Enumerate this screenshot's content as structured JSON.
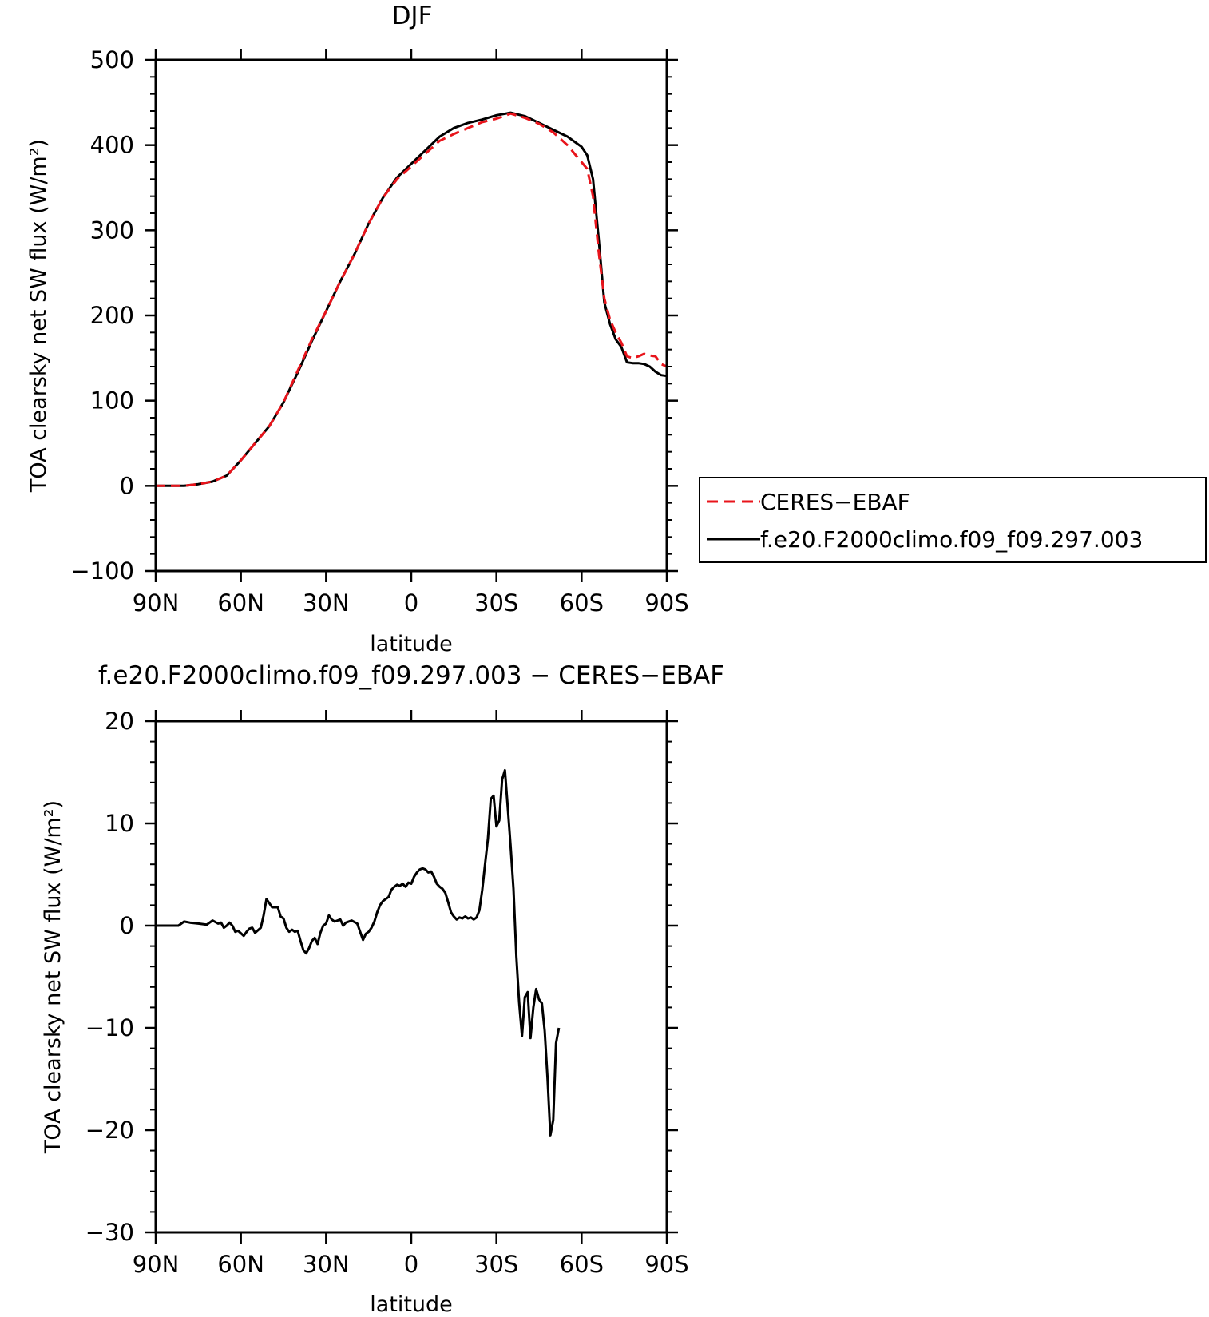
{
  "chart_data": [
    {
      "type": "line",
      "title": "DJF",
      "xlabel": "latitude",
      "ylabel": "TOA clearsky net SW flux (W/m²)",
      "xlim": [
        -90,
        90
      ],
      "ylim": [
        -100,
        500
      ],
      "x_ticks": [
        -90,
        -60,
        -30,
        0,
        30,
        60,
        90
      ],
      "x_tick_labels": [
        "90N",
        "60N",
        "30N",
        "0",
        "30S",
        "60S",
        "90S"
      ],
      "y_ticks": [
        -100,
        0,
        100,
        200,
        300,
        400,
        500
      ],
      "y_tick_labels": [
        "−100",
        "0",
        "100",
        "200",
        "300",
        "400",
        "500"
      ],
      "legend": {
        "placement": "right",
        "entries": [
          "CERES−EBAF",
          "f.e20.F2000climo.f09_f09.297.003"
        ]
      },
      "series": [
        {
          "name": "CERES−EBAF",
          "color": "#e8141b",
          "dash": "dashed",
          "points": [
            [
              -90,
              0
            ],
            [
              -85,
              0
            ],
            [
              -80,
              0
            ],
            [
              -75,
              2
            ],
            [
              -70,
              5
            ],
            [
              -65,
              12
            ],
            [
              -60,
              30
            ],
            [
              -55,
              50
            ],
            [
              -50,
              70
            ],
            [
              -45,
              98
            ],
            [
              -40,
              135
            ],
            [
              -35,
              172
            ],
            [
              -30,
              205
            ],
            [
              -25,
              240
            ],
            [
              -20,
              272
            ],
            [
              -15,
              308
            ],
            [
              -10,
              338
            ],
            [
              -5,
              360
            ],
            [
              0,
              375
            ],
            [
              5,
              390
            ],
            [
              10,
              405
            ],
            [
              15,
              413
            ],
            [
              20,
              420
            ],
            [
              25,
              427
            ],
            [
              30,
              431
            ],
            [
              35,
              437
            ],
            [
              40,
              432
            ],
            [
              45,
              425
            ],
            [
              50,
              415
            ],
            [
              55,
              400
            ],
            [
              60,
              380
            ],
            [
              62,
              372
            ],
            [
              64,
              340
            ],
            [
              66,
              275
            ],
            [
              68,
              220
            ],
            [
              70,
              195
            ],
            [
              72,
              180
            ],
            [
              74,
              168
            ],
            [
              76,
              152
            ],
            [
              78,
              150
            ],
            [
              80,
              152
            ],
            [
              82,
              155
            ],
            [
              84,
              153
            ],
            [
              86,
              152
            ],
            [
              88,
              143
            ],
            [
              90,
              140
            ]
          ]
        },
        {
          "name": "f.e20.F2000climo.f09_f09.297.003",
          "color": "#000000",
          "dash": "solid",
          "points": [
            [
              -90,
              0
            ],
            [
              -85,
              0
            ],
            [
              -80,
              0
            ],
            [
              -75,
              2
            ],
            [
              -70,
              5
            ],
            [
              -65,
              12
            ],
            [
              -60,
              30
            ],
            [
              -55,
              50
            ],
            [
              -50,
              70
            ],
            [
              -45,
              98
            ],
            [
              -40,
              133
            ],
            [
              -35,
              170
            ],
            [
              -30,
              205
            ],
            [
              -25,
              240
            ],
            [
              -20,
              272
            ],
            [
              -15,
              308
            ],
            [
              -10,
              338
            ],
            [
              -5,
              362
            ],
            [
              0,
              378
            ],
            [
              5,
              394
            ],
            [
              10,
              410
            ],
            [
              15,
              420
            ],
            [
              20,
              426
            ],
            [
              25,
              430
            ],
            [
              30,
              435
            ],
            [
              35,
              438
            ],
            [
              40,
              434
            ],
            [
              45,
              426
            ],
            [
              50,
              418
            ],
            [
              55,
              410
            ],
            [
              60,
              398
            ],
            [
              62,
              388
            ],
            [
              64,
              360
            ],
            [
              66,
              290
            ],
            [
              68,
              215
            ],
            [
              70,
              190
            ],
            [
              72,
              172
            ],
            [
              74,
              163
            ],
            [
              76,
              145
            ],
            [
              78,
              144
            ],
            [
              80,
              144
            ],
            [
              82,
              143
            ],
            [
              84,
              140
            ],
            [
              86,
              134
            ],
            [
              88,
              130
            ],
            [
              90,
              129
            ]
          ]
        }
      ]
    },
    {
      "type": "line",
      "title": "f.e20.F2000climo.f09_f09.297.003 − CERES−EBAF",
      "xlabel": "latitude",
      "ylabel": "TOA clearsky net SW flux (W/m²)",
      "xlim": [
        -90,
        90
      ],
      "ylim": [
        -30,
        20
      ],
      "x_ticks": [
        -90,
        -60,
        -30,
        0,
        30,
        60,
        90
      ],
      "x_tick_labels": [
        "90N",
        "60N",
        "30N",
        "0",
        "30S",
        "60S",
        "90S"
      ],
      "y_ticks": [
        -30,
        -20,
        -10,
        0,
        10,
        20
      ],
      "y_tick_labels": [
        "−30",
        "−20",
        "−10",
        "0",
        "10",
        "20"
      ],
      "series": [
        {
          "color": "#000000",
          "dash": "solid",
          "points": [
            [
              -90,
              0
            ],
            [
              -86,
              0
            ],
            [
              -82,
              0
            ],
            [
              -80,
              0.4
            ],
            [
              -78,
              0.3
            ],
            [
              -75,
              0.2
            ],
            [
              -72,
              0.1
            ],
            [
              -70,
              0.5
            ],
            [
              -68,
              0.2
            ],
            [
              -67,
              0.3
            ],
            [
              -66,
              -0.2
            ],
            [
              -65,
              0
            ],
            [
              -64,
              0.3
            ],
            [
              -63,
              0
            ],
            [
              -62,
              -0.6
            ],
            [
              -61,
              -0.5
            ],
            [
              -59,
              -1
            ],
            [
              -58,
              -0.6
            ],
            [
              -57,
              -0.3
            ],
            [
              -56,
              -0.2
            ],
            [
              -55,
              -0.7
            ],
            [
              -53,
              -0.2
            ],
            [
              -52,
              1
            ],
            [
              -51,
              2.6
            ],
            [
              -50,
              2.2
            ],
            [
              -49,
              1.8
            ],
            [
              -47,
              1.8
            ],
            [
              -46,
              0.9
            ],
            [
              -45,
              0.7
            ],
            [
              -44,
              -0.2
            ],
            [
              -43,
              -0.6
            ],
            [
              -42,
              -0.4
            ],
            [
              -41,
              -0.6
            ],
            [
              -40,
              -0.5
            ],
            [
              -39,
              -1.5
            ],
            [
              -38,
              -2.4
            ],
            [
              -37,
              -2.7
            ],
            [
              -36,
              -2.2
            ],
            [
              -35,
              -1.5
            ],
            [
              -34,
              -1.2
            ],
            [
              -33,
              -1.8
            ],
            [
              -32,
              -0.7
            ],
            [
              -31,
              0
            ],
            [
              -30,
              0.2
            ],
            [
              -29,
              1
            ],
            [
              -28,
              0.6
            ],
            [
              -27,
              0.4
            ],
            [
              -26,
              0.5
            ],
            [
              -25,
              0.6
            ],
            [
              -24,
              0
            ],
            [
              -23,
              0.3
            ],
            [
              -21,
              0.5
            ],
            [
              -19,
              0.2
            ],
            [
              -18,
              -0.6
            ],
            [
              -17,
              -1.4
            ],
            [
              -16,
              -0.8
            ],
            [
              -15,
              -0.6
            ],
            [
              -14,
              -0.2
            ],
            [
              -13,
              0.4
            ],
            [
              -12,
              1.3
            ],
            [
              -11,
              2
            ],
            [
              -10,
              2.4
            ],
            [
              -9,
              2.6
            ],
            [
              -8,
              2.8
            ],
            [
              -7,
              3.5
            ],
            [
              -6,
              3.8
            ],
            [
              -5,
              4
            ],
            [
              -4,
              3.9
            ],
            [
              -3,
              4.1
            ],
            [
              -2,
              3.8
            ],
            [
              -1,
              4.2
            ],
            [
              0,
              4.1
            ],
            [
              1,
              4.8
            ],
            [
              2,
              5.2
            ],
            [
              3,
              5.5
            ],
            [
              4,
              5.6
            ],
            [
              5,
              5.5
            ],
            [
              6,
              5.2
            ],
            [
              7,
              5.3
            ],
            [
              8,
              4.8
            ],
            [
              9,
              4.1
            ],
            [
              10,
              3.8
            ],
            [
              11,
              3.6
            ],
            [
              12,
              3.2
            ],
            [
              13,
              2.3
            ],
            [
              14,
              1.3
            ],
            [
              15,
              0.9
            ],
            [
              16,
              0.6
            ],
            [
              17,
              0.8
            ],
            [
              18,
              0.7
            ],
            [
              19,
              0.9
            ],
            [
              20,
              0.7
            ],
            [
              21,
              0.8
            ],
            [
              22,
              0.6
            ],
            [
              23,
              0.8
            ],
            [
              24,
              1.5
            ],
            [
              25,
              3.5
            ],
            [
              26,
              6
            ],
            [
              27,
              8.5
            ],
            [
              28,
              12.4
            ],
            [
              29,
              12.7
            ],
            [
              30,
              9.7
            ],
            [
              31,
              10.3
            ],
            [
              32,
              14.3
            ],
            [
              33,
              15.2
            ],
            [
              34,
              11.5
            ],
            [
              35,
              7.8
            ],
            [
              36,
              3.6
            ],
            [
              37,
              -3
            ],
            [
              38,
              -7.5
            ],
            [
              39,
              -10.8
            ],
            [
              40,
              -7
            ],
            [
              41,
              -6.5
            ],
            [
              42,
              -11
            ],
            [
              43,
              -8
            ],
            [
              44,
              -6.2
            ],
            [
              45,
              -7.2
            ],
            [
              46,
              -7.6
            ],
            [
              47,
              -10.3
            ],
            [
              48,
              -15
            ],
            [
              49,
              -20.5
            ],
            [
              50,
              -19
            ],
            [
              51,
              -11.5
            ],
            [
              52,
              -10
            ]
          ]
        }
      ]
    }
  ]
}
